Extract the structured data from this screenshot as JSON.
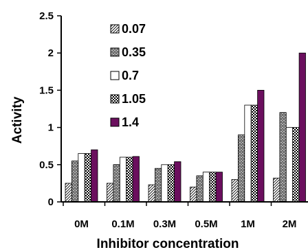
{
  "chart_data": {
    "type": "bar",
    "title": "",
    "xlabel": "Inhibitor concentration",
    "ylabel": "Activity",
    "ylim": [
      0,
      2.5
    ],
    "yticks": [
      "0",
      "0.5",
      "1",
      "1.5",
      "2",
      "2.5"
    ],
    "categories": [
      "0M",
      "0.1M",
      "0.3M",
      "0.5M",
      "1M",
      "2M"
    ],
    "series": [
      {
        "name": "0.07",
        "pattern": "diag-hatch",
        "color": "#000000",
        "values": [
          0.25,
          0.25,
          0.23,
          0.2,
          0.3,
          0.32
        ]
      },
      {
        "name": "0.35",
        "pattern": "brick",
        "color": "#000000",
        "values": [
          0.55,
          0.5,
          0.45,
          0.35,
          0.9,
          1.2
        ]
      },
      {
        "name": "0.7",
        "pattern": "solid-white",
        "color": "#ffffff",
        "values": [
          0.65,
          0.6,
          0.5,
          0.4,
          1.3,
          1.0
        ]
      },
      {
        "name": "1.05",
        "pattern": "checker",
        "color": "#000000",
        "values": [
          0.65,
          0.6,
          0.5,
          0.4,
          1.3,
          1.0
        ]
      },
      {
        "name": "1.4",
        "pattern": "solid",
        "color": "#6b0f5e",
        "values": [
          0.7,
          0.61,
          0.54,
          0.4,
          1.5,
          2.0
        ]
      }
    ],
    "legend": "upper-left inside plot",
    "grid": false
  }
}
